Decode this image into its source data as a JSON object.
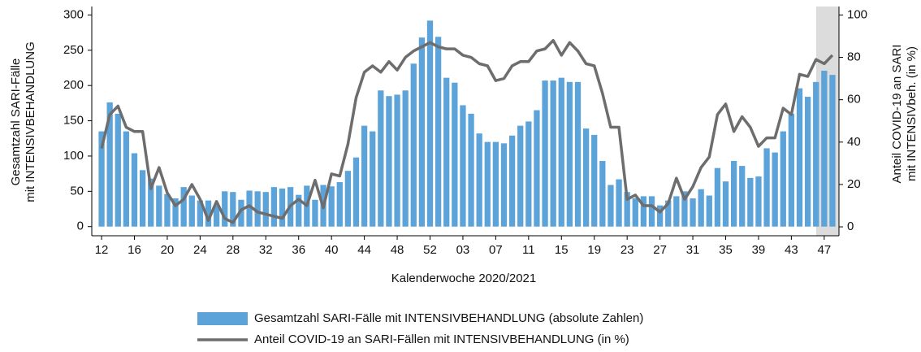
{
  "chart_data": {
    "type": "bar",
    "xlabel": "Kalenderwoche 2020/2021",
    "ylabel": [
      "Gesamtzahl SARI-Fälle",
      "mit INTENSIVBEHANDLUNG"
    ],
    "y2label": [
      "Anteil COVID-19 an SARI",
      "mit INTENSIVbeh. (in %)"
    ],
    "categories": [
      "12",
      null,
      null,
      null,
      "16",
      null,
      null,
      null,
      "20",
      null,
      null,
      null,
      "24",
      null,
      null,
      null,
      "28",
      null,
      null,
      null,
      "32",
      null,
      null,
      null,
      "36",
      null,
      null,
      null,
      "40",
      null,
      null,
      null,
      "44",
      null,
      null,
      null,
      "48",
      null,
      null,
      null,
      "52",
      null,
      null,
      null,
      "03",
      null,
      null,
      null,
      "07",
      null,
      null,
      null,
      "11",
      null,
      null,
      null,
      "15",
      null,
      null,
      null,
      "19",
      null,
      null,
      null,
      "23",
      null,
      null,
      null,
      "27",
      null,
      null,
      null,
      "31",
      null,
      null,
      null,
      "35",
      null,
      null,
      null,
      "39",
      null,
      null,
      null,
      "43",
      null,
      null,
      null,
      "47",
      null
    ],
    "series": [
      {
        "name": "Gesamtzahl SARI-Fälle mit INTENSIVBEHANDLUNG (absolute Zahlen)",
        "type": "bar",
        "axis": "y",
        "color": "#5ba3d9",
        "values": [
          135,
          176,
          160,
          135,
          104,
          80,
          68,
          58,
          46,
          40,
          56,
          44,
          37,
          37,
          30,
          50,
          49,
          38,
          51,
          50,
          49,
          56,
          54,
          56,
          45,
          58,
          38,
          59,
          57,
          63,
          79,
          98,
          143,
          135,
          193,
          185,
          187,
          193,
          231,
          268,
          292,
          269,
          211,
          204,
          172,
          160,
          132,
          120,
          120,
          118,
          129,
          143,
          149,
          165,
          207,
          207,
          211,
          205,
          205,
          139,
          130,
          93,
          59,
          67,
          49,
          40,
          43,
          43,
          30,
          37,
          43,
          50,
          40,
          53,
          44,
          83,
          64,
          93,
          86,
          69,
          71,
          111,
          105,
          135,
          160,
          196,
          184,
          205,
          221,
          215
        ]
      },
      {
        "name": "Anteil COVID-19 an SARI-Fällen mit INTENSIVBEHANDLUNG (in %)",
        "type": "line",
        "axis": "y2",
        "color": "#6d6d6d",
        "values": [
          37,
          53,
          57,
          47,
          45,
          45,
          18,
          28,
          16,
          10,
          13,
          20,
          13,
          3,
          12,
          4,
          2,
          8,
          10,
          7,
          6,
          5,
          4,
          10,
          13,
          10,
          22,
          9,
          25,
          24,
          39,
          61,
          73,
          76,
          73,
          78,
          74,
          80,
          83,
          85,
          87,
          85,
          84,
          84,
          81,
          80,
          77,
          76,
          69,
          70,
          76,
          78,
          78,
          83,
          84,
          88,
          81,
          87,
          83,
          77,
          76,
          63,
          47,
          47,
          13,
          15,
          10,
          10,
          7,
          11,
          23,
          13,
          19,
          28,
          33,
          53,
          58,
          45,
          52,
          47,
          38,
          42,
          42,
          56,
          53,
          72,
          71,
          79,
          77,
          81
        ]
      }
    ],
    "ylim": [
      -13,
      312
    ],
    "yticks": [
      0,
      50,
      100,
      150,
      200,
      250,
      300
    ],
    "y2lim": [
      -4.2,
      104
    ],
    "y2ticks": [
      0,
      20,
      40,
      60,
      80,
      100
    ]
  }
}
